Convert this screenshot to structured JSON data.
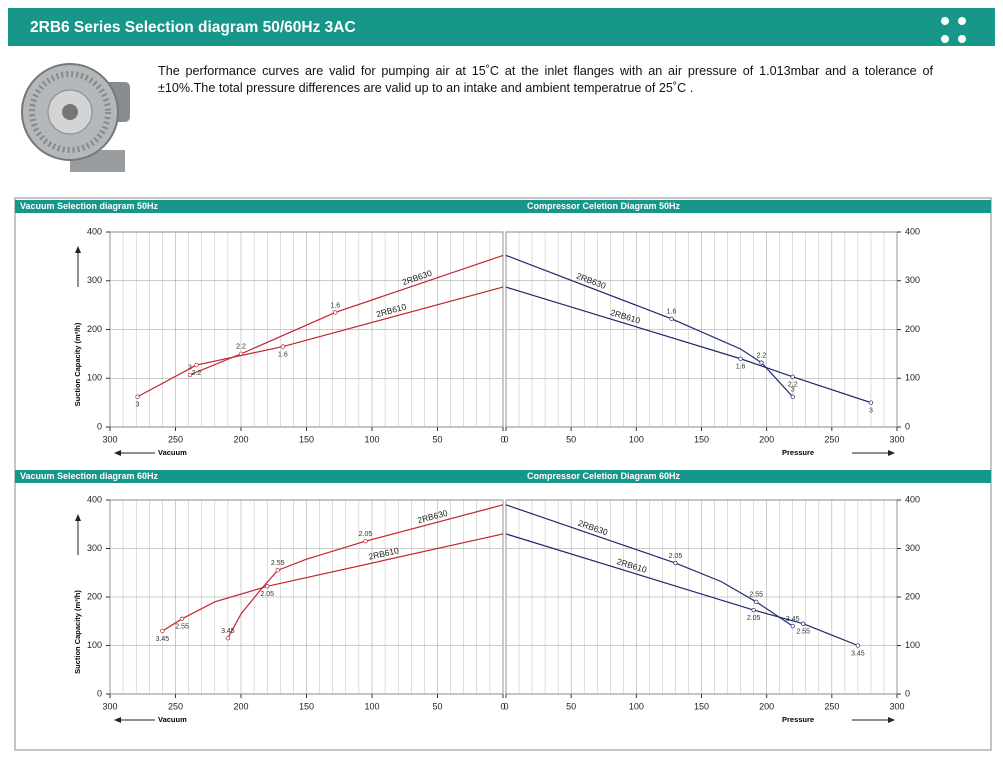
{
  "header": {
    "title": "2RB6 Series Selection diagram 50/60Hz 3AC"
  },
  "intro": {
    "text": "The performance curves are valid for pumping air at 15˚C at the inlet flanges with an air pressure of 1.013mbar and a tolerance of ±10%.The total pressure differences are valid up to an intake and ambient temperatrue of 25˚C ."
  },
  "chart_data": [
    {
      "type": "line",
      "title": "Vacuum Selection diagram 50Hz",
      "xlabel": "Vacuum",
      "ylabel": "Suction Capacity   (m³/h)",
      "xlim": [
        300,
        0
      ],
      "xticks": [
        300,
        250,
        200,
        150,
        100,
        50,
        0
      ],
      "ylim": [
        0,
        400
      ],
      "yticks": [
        0,
        100,
        200,
        300,
        400
      ],
      "grid": true,
      "series": [
        {
          "name": "2RB630",
          "color": "#c0262e",
          "x": [
            239,
            200,
            128,
            0
          ],
          "values": [
            107,
            150,
            235,
            352
          ],
          "point_labels": [
            "3",
            "2.2",
            "1.6",
            null
          ]
        },
        {
          "name": "2RB610",
          "color": "#c0262e",
          "x": [
            279,
            234,
            168,
            0
          ],
          "values": [
            62,
            127,
            165,
            287
          ],
          "point_labels": [
            "3",
            "2.2",
            "1.6",
            null
          ]
        }
      ]
    },
    {
      "type": "line",
      "title": "Compressor Celetion Diagram 50Hz",
      "xlabel": "Pressure",
      "xlim": [
        0,
        300
      ],
      "xticks": [
        0,
        50,
        100,
        150,
        200,
        250,
        300
      ],
      "ylim": [
        0,
        400
      ],
      "yticks": [
        0,
        100,
        200,
        300,
        400
      ],
      "grid": true,
      "series": [
        {
          "name": "2RB630",
          "color": "#1f2a6e",
          "x": [
            0,
            127,
            180,
            196,
            220
          ],
          "values": [
            352,
            222,
            160,
            132,
            62
          ],
          "point_labels": [
            null,
            "1.6",
            null,
            "2.2",
            "3"
          ]
        },
        {
          "name": "2RB610",
          "color": "#1f2a6e",
          "x": [
            0,
            180,
            220,
            280
          ],
          "values": [
            287,
            140,
            103,
            50
          ],
          "point_labels": [
            null,
            "1.6",
            "2.2",
            "3"
          ]
        }
      ]
    },
    {
      "type": "line",
      "title": "Vacuum Selection diagram 60Hz",
      "xlabel": "Vacuum",
      "ylabel": "Suction Capacity   (m³/h)",
      "xlim": [
        300,
        0
      ],
      "xticks": [
        300,
        250,
        200,
        150,
        100,
        50,
        0
      ],
      "ylim": [
        0,
        400
      ],
      "yticks": [
        0,
        100,
        200,
        300,
        400
      ],
      "grid": true,
      "series": [
        {
          "name": "2RB630",
          "color": "#c0262e",
          "x": [
            210,
            200,
            185,
            172,
            150,
            105,
            0
          ],
          "values": [
            115,
            165,
            215,
            255,
            278,
            315,
            390
          ],
          "point_labels": [
            "3.45",
            null,
            null,
            "2.55",
            null,
            "2.05",
            null
          ]
        },
        {
          "name": "2RB610",
          "color": "#c0262e",
          "x": [
            260,
            245,
            220,
            180,
            0
          ],
          "values": [
            130,
            155,
            190,
            222,
            330
          ],
          "point_labels": [
            "3.45",
            "2.55",
            null,
            "2.05",
            null
          ]
        }
      ]
    },
    {
      "type": "line",
      "title": "Compressor Celetion Diagram 60Hz",
      "xlabel": "Pressure",
      "xlim": [
        0,
        300
      ],
      "xticks": [
        0,
        50,
        100,
        150,
        200,
        250,
        300
      ],
      "ylim": [
        0,
        400
      ],
      "yticks": [
        0,
        100,
        200,
        300,
        400
      ],
      "grid": true,
      "series": [
        {
          "name": "2RB630",
          "color": "#1f2a6e",
          "x": [
            0,
            130,
            165,
            192,
            220
          ],
          "values": [
            390,
            270,
            232,
            190,
            140
          ],
          "point_labels": [
            null,
            "2.05",
            null,
            "2.55",
            "3.45"
          ]
        },
        {
          "name": "2RB610",
          "color": "#1f2a6e",
          "x": [
            0,
            190,
            228,
            270
          ],
          "values": [
            330,
            173,
            145,
            100
          ],
          "point_labels": [
            null,
            "2.05",
            "2.55",
            "3.45"
          ]
        }
      ]
    }
  ]
}
